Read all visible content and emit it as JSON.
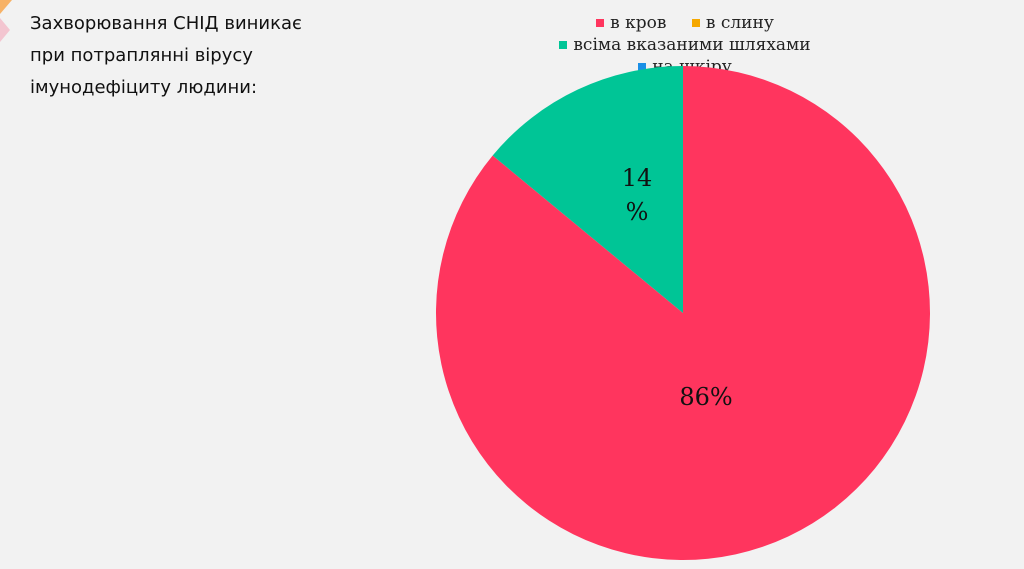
{
  "question": {
    "lines": [
      "Захворювання СНІД виникає",
      "при потраплянні  вірусу",
      "імунодефіциту людини:"
    ]
  },
  "chart_data": {
    "type": "pie",
    "categories": [
      "в кров",
      "в слину",
      "всіма вказаними шляхами",
      "на шкіру"
    ],
    "values": [
      86,
      0,
      14,
      0
    ],
    "data_labels": [
      "86%",
      "",
      "14 %",
      ""
    ],
    "colors": [
      "#ff355e",
      "#f5a800",
      "#00c596",
      "#1a8fe6"
    ],
    "legend_position": "top"
  },
  "deco": {
    "colors": [
      "#f7b267",
      "#f4a7b9"
    ]
  }
}
